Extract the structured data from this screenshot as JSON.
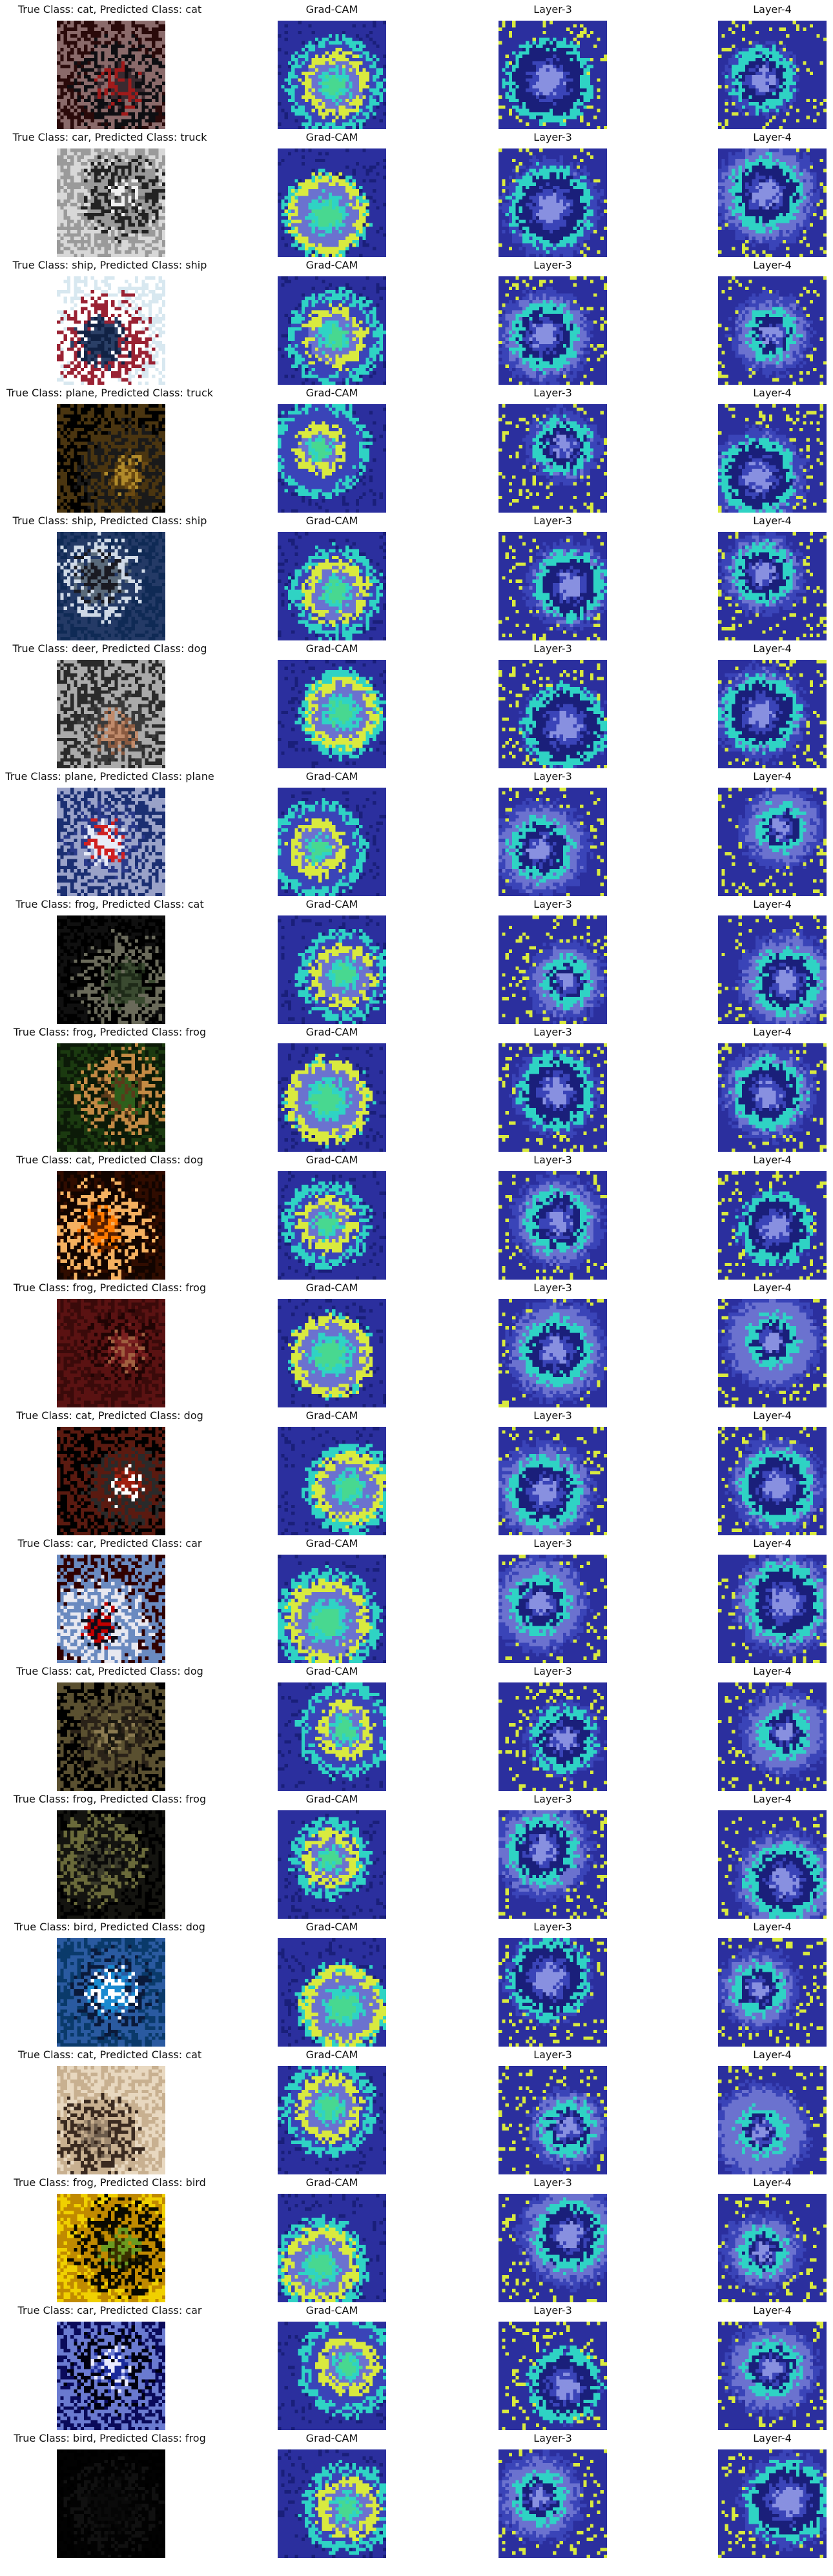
{
  "column_titles": {
    "gradcam": "Grad-CAM",
    "layer3": "Layer-3",
    "layer4": "Layer-4"
  },
  "rows": [
    {
      "caption": "True Class: cat, Predicted Class: cat",
      "photo": "cat photo (dark)"
    },
    {
      "caption": "True Class: car, Predicted Class: truck",
      "photo": "vintage car (grayscale)"
    },
    {
      "caption": "True Class: ship, Predicted Class: ship",
      "photo": "ship on water"
    },
    {
      "caption": "True Class: plane, Predicted Class: truck",
      "photo": "plane silhouette"
    },
    {
      "caption": "True Class: ship, Predicted Class: ship",
      "photo": "ship at harbor"
    },
    {
      "caption": "True Class: deer, Predicted Class: dog",
      "photo": "deer close-up"
    },
    {
      "caption": "True Class: plane, Predicted Class: plane",
      "photo": "plane with red text"
    },
    {
      "caption": "True Class: frog, Predicted Class: cat",
      "photo": "frog in dark"
    },
    {
      "caption": "True Class: frog, Predicted Class: frog",
      "photo": "frog on leaves"
    },
    {
      "caption": "True Class: cat, Predicted Class: dog",
      "photo": "cat orange/dark"
    },
    {
      "caption": "True Class: frog, Predicted Class: frog",
      "photo": "frog red texture"
    },
    {
      "caption": "True Class: cat, Predicted Class: dog",
      "photo": "cat black/red"
    },
    {
      "caption": "True Class: car, Predicted Class: car",
      "photo": "car light"
    },
    {
      "caption": "True Class: cat, Predicted Class: dog",
      "photo": "cat in dark"
    },
    {
      "caption": "True Class: frog, Predicted Class: frog",
      "photo": "frog in darkness"
    },
    {
      "caption": "True Class: bird, Predicted Class: dog",
      "photo": "bird blue"
    },
    {
      "caption": "True Class: cat, Predicted Class: cat",
      "photo": "cat beige"
    },
    {
      "caption": "True Class: frog, Predicted Class: bird",
      "photo": "frog on yellow"
    },
    {
      "caption": "True Class: car, Predicted Class: car",
      "photo": "blue car"
    },
    {
      "caption": "True Class: bird, Predicted Class: frog",
      "photo": "bird in dark"
    }
  ],
  "colors": {
    "heat_blue": "#2b2f9e",
    "heat_cyan": "#2fd3c4",
    "heat_yellow": "#d9ea3f",
    "heat_purple": "#6b72cf"
  }
}
